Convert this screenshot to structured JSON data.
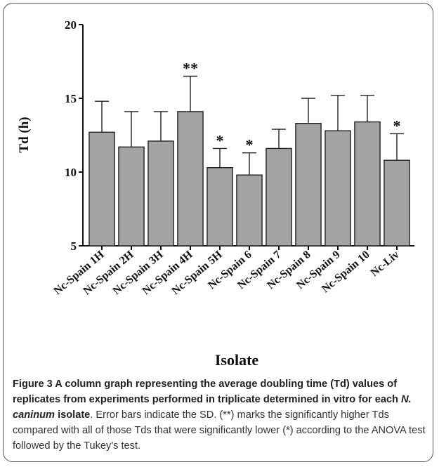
{
  "chart_data": {
    "type": "bar",
    "y_label": "Td (h)",
    "x_label": "Isolate",
    "categories": [
      "Nc-Spain 1H",
      "Nc-Spain 2H",
      "Nc-Spain 3H",
      "Nc-Spain 4H",
      "Nc-Spain 5H",
      "Nc-Spain 6",
      "Nc-Spain 7",
      "Nc-Spain 8",
      "Nc-Spain 9",
      "Nc-Spain 10",
      "Nc-Liv"
    ],
    "values": [
      12.7,
      11.7,
      12.1,
      14.1,
      10.3,
      9.8,
      11.6,
      13.3,
      12.8,
      13.4,
      10.8
    ],
    "errors": [
      2.1,
      2.4,
      2.0,
      2.4,
      1.3,
      1.5,
      1.3,
      1.7,
      2.4,
      1.8,
      1.8
    ],
    "significance": [
      null,
      null,
      null,
      "**",
      "*",
      "*",
      null,
      null,
      null,
      null,
      "*"
    ],
    "color": "#a3a3a3",
    "ylim": [
      5,
      20
    ],
    "yticks": [
      5,
      10,
      15,
      20
    ]
  },
  "caption": {
    "bold_start": "Figure 3 A column graph representing the average doubling time (Td) values of replicates from experiments performed in triplicate determined in vitro for each ",
    "bold_italic": "N. caninum",
    "bold_end": " isolate",
    "text": ". Error bars indicate the SD. (**) marks the significantly higher Tds compared with all of those Tds that were significantly lower (*) according to the ANOVA test followed by the Tukey's test."
  }
}
